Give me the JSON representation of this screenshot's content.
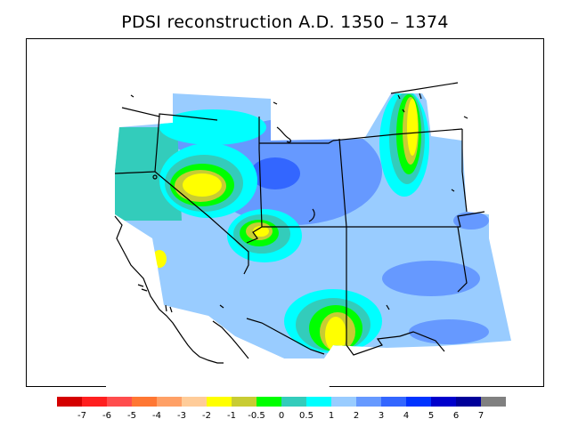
{
  "title": "PDSI reconstruction A.D. 1350 – 1374",
  "legend": {
    "labels": [
      "-7",
      "-6",
      "-5",
      "-4",
      "-3",
      "-2",
      "-1",
      "-0.5",
      "0",
      "0.5",
      "1",
      "2",
      "3",
      "4",
      "5",
      "6",
      "7"
    ],
    "colors": [
      "#d40000",
      "#ff1f1f",
      "#ff4d4d",
      "#ff7733",
      "#ffa066",
      "#ffcc99",
      "#ffff00",
      "#c8cc33",
      "#00ff00",
      "#33ccbb",
      "#00ffff",
      "#99ccff",
      "#6699ff",
      "#3366ff",
      "#0033ff",
      "#0000cc",
      "#000099",
      "#808080"
    ]
  },
  "map": {
    "colors": {
      "wet_1_2": "#99ccff",
      "wet_2_3": "#6699ff",
      "wet_3_4": "#3366ff",
      "wet_0_5_1": "#00ffff",
      "wet_0_0_5": "#33ccbb",
      "dry_0_0_5": "#00ff00",
      "dry_0_5_1": "#c8cc33",
      "dry_1_2": "#ffff00",
      "dry_2_3": "#ffcc99"
    }
  }
}
